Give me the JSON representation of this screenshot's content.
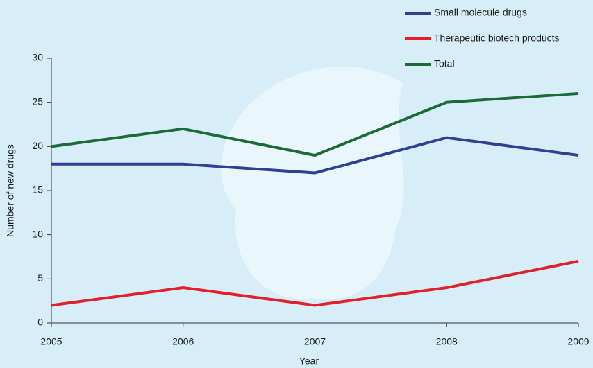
{
  "chart_data": {
    "type": "line",
    "x": [
      2005,
      2006,
      2007,
      2008,
      2009
    ],
    "xlim": [
      2005,
      2009
    ],
    "xticks": [
      2005,
      2006,
      2007,
      2008,
      2009
    ],
    "ylim": [
      0,
      30
    ],
    "yticks": [
      0,
      5,
      10,
      15,
      20,
      25,
      30
    ],
    "x_label": "Year",
    "y_label": "Number of new drugs",
    "legend": "top-right",
    "series": [
      {
        "name": "Small molecule drugs",
        "color": "#2f3f94",
        "values": [
          18,
          18,
          17,
          21,
          19
        ]
      },
      {
        "name": "Therapeutic biotech products",
        "color": "#e0202b",
        "values": [
          2,
          4,
          2,
          4,
          7
        ]
      },
      {
        "name": "Total",
        "color": "#1c6a36",
        "values": [
          20,
          22,
          19,
          25,
          26
        ]
      }
    ]
  }
}
